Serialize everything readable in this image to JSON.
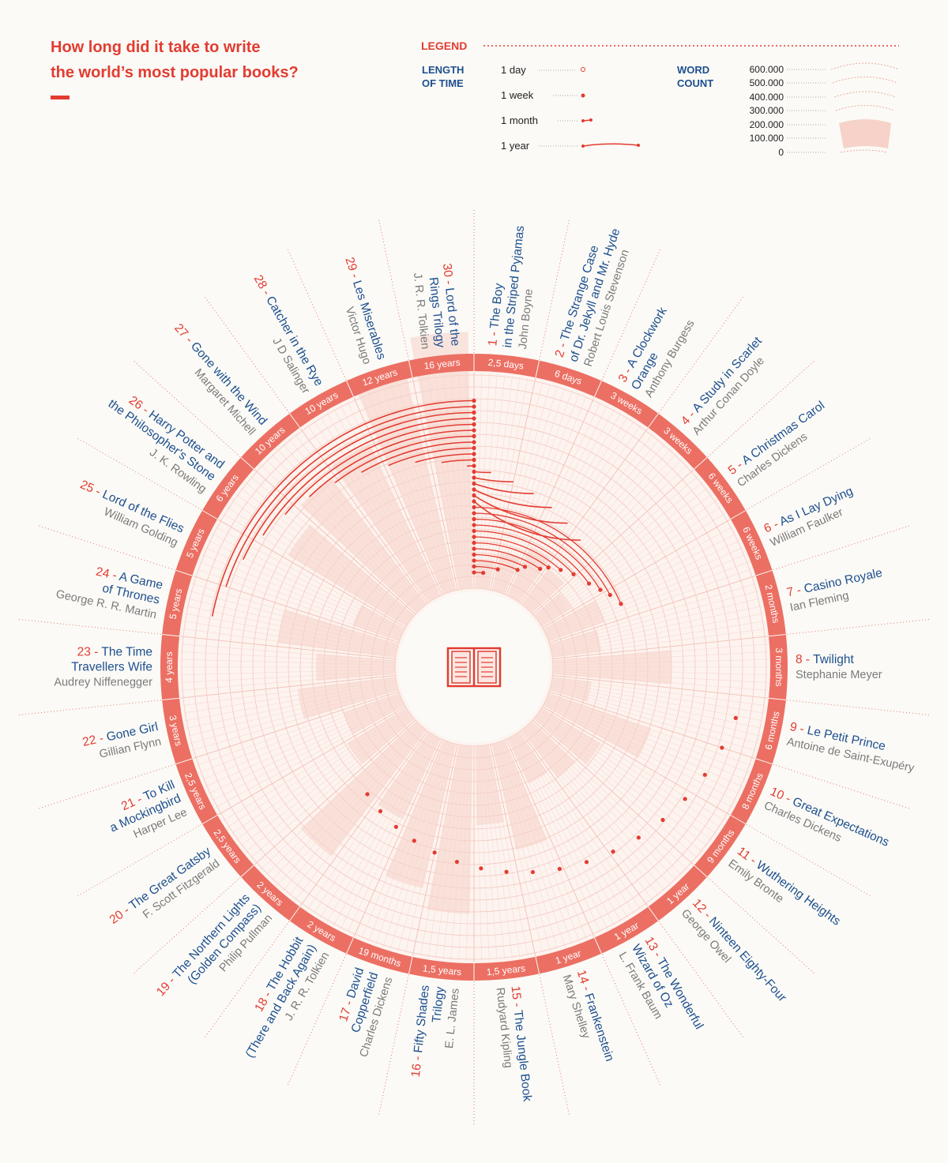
{
  "title_line1": "How long did it take to write",
  "title_line2": "the world’s most popular books?",
  "legend": {
    "heading": "LEGEND",
    "time_heading_1": "LENGTH",
    "time_heading_2": "OF TIME",
    "time_items": [
      "1 day",
      "1 week",
      "1 month",
      "1 year"
    ],
    "word_heading_1": "WORD",
    "word_heading_2": "COUNT",
    "word_ticks": [
      "600.000",
      "500.000",
      "400.000",
      "300.000",
      "200.000",
      "100.000",
      "0"
    ]
  },
  "colors": {
    "accent": "#e23c31",
    "ring": "#ec6f63",
    "title_blue": "#1d4f8f",
    "author_grey": "#7a7a7a",
    "fan": "#f6d2c8",
    "guide": "#f3c9bf"
  },
  "center_icon": "open-book-icon",
  "chart_data": {
    "type": "radial",
    "books": [
      {
        "n": "1",
        "title": [
          "The Boy",
          "in the Striped Pyjamas"
        ],
        "author": "John Boyne",
        "time": "2,5 days",
        "days": 2.5
      },
      {
        "n": "2",
        "title": [
          "The Strange Case",
          "of Dr. Jekyll and Mr. Hyde"
        ],
        "author": "Robert Louis Stevenson",
        "time": "6 days",
        "days": 6
      },
      {
        "n": "3",
        "title": [
          "A Clockwork",
          "Orange"
        ],
        "author": "Anthony Burgess",
        "time": "3 weeks",
        "days": 21
      },
      {
        "n": "4",
        "title": [
          "A Study in Scarlet"
        ],
        "author": "Arthur Conan Doyle",
        "time": "3 weeks",
        "days": 21
      },
      {
        "n": "5",
        "title": [
          "A Christmas Carol"
        ],
        "author": "Charles Dickens",
        "time": "6 weeks",
        "days": 42
      },
      {
        "n": "6",
        "title": [
          "As I Lay Dying"
        ],
        "author": "William Faulker",
        "time": "6 weeks",
        "days": 42
      },
      {
        "n": "7",
        "title": [
          "Casino Royale"
        ],
        "author": "Ian Fleming",
        "time": "2 months",
        "days": 60
      },
      {
        "n": "8",
        "title": [
          "Twilight"
        ],
        "author": "Stephanie Meyer",
        "time": "3 months",
        "days": 90
      },
      {
        "n": "9",
        "title": [
          "Le Petit Prince"
        ],
        "author": "Antoine de Saint-Exupéry",
        "time": "6 months",
        "days": 180
      },
      {
        "n": "10",
        "title": [
          "Great Expectations"
        ],
        "author": "Charles Dickens",
        "time": "8 months",
        "days": 240
      },
      {
        "n": "11",
        "title": [
          "Wuthering Heights"
        ],
        "author": "Emily Bronte",
        "time": "9 months",
        "days": 270
      },
      {
        "n": "12",
        "title": [
          "Ninteen Eighty-Four"
        ],
        "author": "George Owel",
        "time": "1 year",
        "days": 365
      },
      {
        "n": "13",
        "title": [
          "The Wonderful",
          "Wizard of Oz"
        ],
        "author": "L. Frank Baum",
        "time": "1 year",
        "days": 365
      },
      {
        "n": "14",
        "title": [
          "Frankenstein"
        ],
        "author": "Mary Shelley",
        "time": "1 year",
        "days": 365
      },
      {
        "n": "15",
        "title": [
          "The Jungle Book"
        ],
        "author": "Rudyard Kipling",
        "time": "1,5 years",
        "days": 548
      },
      {
        "n": "16",
        "title": [
          "Fifty Shades",
          "Trilogy"
        ],
        "author": "E. L. James",
        "time": "1,5 years",
        "days": 548
      },
      {
        "n": "17",
        "title": [
          "David",
          "Copperfield"
        ],
        "author": "Charles Dickens",
        "time": "19 months",
        "days": 578
      },
      {
        "n": "18",
        "title": [
          "The Hobbit",
          "(There and Back Again)"
        ],
        "author": "J. R. R. Tolkien",
        "time": "2 years",
        "days": 730
      },
      {
        "n": "19",
        "title": [
          "The Northern Lights",
          "(Golden Compass)"
        ],
        "author": "Philip Pullman",
        "time": "2 years",
        "days": 730
      },
      {
        "n": "20",
        "title": [
          "The Great Gatsby"
        ],
        "author": "F. Scott Fitzgerald",
        "time": "2,5 years",
        "days": 913
      },
      {
        "n": "21",
        "title": [
          "To Kill",
          "a Mockingbird"
        ],
        "author": "Harper Lee",
        "time": "2,5 years",
        "days": 913
      },
      {
        "n": "22",
        "title": [
          "Gone Girl"
        ],
        "author": "Gillian Flynn",
        "time": "3 years",
        "days": 1095
      },
      {
        "n": "23",
        "title": [
          "The Time",
          "Travellers Wife"
        ],
        "author": "Audrey Niffenegger",
        "time": "4 years",
        "days": 1460
      },
      {
        "n": "24",
        "title": [
          "A Game",
          "of Thrones"
        ],
        "author": "George R. R. Martin",
        "time": "5 years",
        "days": 1825
      },
      {
        "n": "25",
        "title": [
          "Lord of the Flies"
        ],
        "author": "William Golding",
        "time": "5 years",
        "days": 1825
      },
      {
        "n": "26",
        "title": [
          "Harry Potter and",
          "the Philosopher's Stone"
        ],
        "author": "J. K. Rowling",
        "time": "6 years",
        "days": 2190
      },
      {
        "n": "27",
        "title": [
          "Gone with the Wind"
        ],
        "author": "Margaret Michell",
        "time": "10 years",
        "days": 3650
      },
      {
        "n": "28",
        "title": [
          "Catcher in the Rye"
        ],
        "author": "J D Salinger",
        "time": "10 years",
        "days": 3650
      },
      {
        "n": "29",
        "title": [
          "Les Miserables"
        ],
        "author": "Victor Hugo",
        "time": "12 years",
        "days": 4380
      },
      {
        "n": "30",
        "title": [
          "Lord of the",
          "Rings Trilogy"
        ],
        "author": "J. R. R. Tolkien",
        "time": "16 years",
        "days": 5840
      }
    ]
  }
}
